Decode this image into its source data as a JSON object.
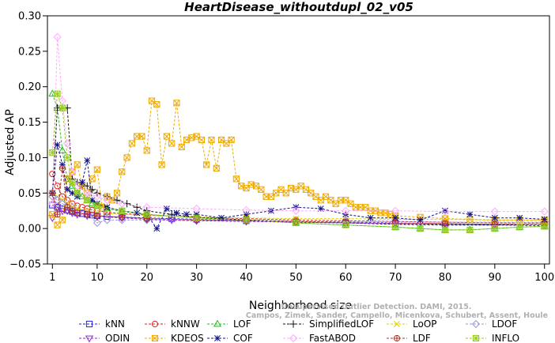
{
  "chart_data": {
    "type": "line",
    "title": "HeartDisease_withoutdupl_02_v05",
    "xlabel": "Neighborhood size",
    "ylabel": "Adjusted AP",
    "xlim": [
      0,
      101
    ],
    "ylim": [
      -0.05,
      0.3
    ],
    "xticks": [
      1,
      10,
      20,
      30,
      40,
      50,
      60,
      70,
      80,
      90,
      100
    ],
    "yticks": [
      -0.05,
      0.0,
      0.05,
      0.1,
      0.15,
      0.2,
      0.25,
      0.3
    ],
    "ytick_labels": [
      "−0.05",
      "0.00",
      "0.05",
      "0.10",
      "0.15",
      "0.20",
      "0.25",
      "0.30"
    ],
    "watermark_lines": [
      "Unsupervised Outlier Detection. DAMI, 2015.",
      "Campos, Zimek, Sander, Campello, Micenkova, Schubert, Assent, Houle"
    ],
    "legend_placement": "bottom",
    "series": [
      {
        "name": "kNN",
        "color": "#2222dd",
        "marker": "square",
        "x": [
          1,
          2,
          3,
          4,
          5,
          6,
          7,
          8,
          9,
          10,
          12,
          15,
          20,
          25,
          30,
          40,
          50,
          60,
          70,
          80,
          90,
          100
        ],
        "y": [
          0.033,
          0.03,
          0.028,
          0.026,
          0.024,
          0.022,
          0.021,
          0.02,
          0.019,
          0.018,
          0.017,
          0.016,
          0.015,
          0.014,
          0.013,
          0.011,
          0.009,
          0.008,
          0.007,
          0.006,
          0.005,
          0.004
        ]
      },
      {
        "name": "kNNW",
        "color": "#dd2222",
        "marker": "circle",
        "x": [
          1,
          2,
          3,
          4,
          5,
          6,
          7,
          8,
          9,
          10,
          12,
          15,
          20,
          30,
          40,
          50,
          60,
          70,
          80,
          90,
          100
        ],
        "y": [
          0.077,
          0.06,
          0.045,
          0.04,
          0.035,
          0.032,
          0.03,
          0.028,
          0.026,
          0.025,
          0.023,
          0.021,
          0.019,
          0.016,
          0.014,
          0.012,
          0.011,
          0.01,
          0.009,
          0.008,
          0.008
        ]
      },
      {
        "name": "LOF",
        "color": "#22bb22",
        "marker": "triangle-up",
        "x": [
          1,
          2,
          3,
          4,
          5,
          6,
          7,
          8,
          9,
          10,
          12,
          15,
          20,
          30,
          40,
          50,
          60,
          70,
          75,
          80,
          85,
          90,
          95,
          100
        ],
        "y": [
          0.19,
          0.17,
          0.11,
          0.07,
          0.06,
          0.05,
          0.045,
          0.04,
          0.035,
          0.032,
          0.028,
          0.024,
          0.02,
          0.015,
          0.012,
          0.008,
          0.005,
          0.002,
          0.0,
          -0.002,
          -0.002,
          0.0,
          0.002,
          0.003
        ]
      },
      {
        "name": "SimplifiedLOF",
        "color": "#111111",
        "marker": "plus",
        "x": [
          1,
          2,
          3,
          4,
          5,
          6,
          7,
          8,
          9,
          10,
          12,
          14,
          16,
          18,
          20,
          25,
          30,
          40,
          50,
          60,
          70,
          80,
          90,
          100
        ],
        "y": [
          0.05,
          0.17,
          0.17,
          0.17,
          0.07,
          0.065,
          0.06,
          0.06,
          0.055,
          0.05,
          0.045,
          0.04,
          0.035,
          0.03,
          0.025,
          0.02,
          0.016,
          0.012,
          0.01,
          0.008,
          0.006,
          0.005,
          0.005,
          0.006
        ]
      },
      {
        "name": "LoOP",
        "color": "#e0d000",
        "marker": "x",
        "x": [
          1,
          2,
          3,
          4,
          5,
          6,
          8,
          10,
          15,
          20,
          30,
          40,
          50,
          60,
          70,
          80,
          90,
          100
        ],
        "y": [
          0.04,
          0.045,
          0.04,
          0.035,
          0.03,
          0.028,
          0.025,
          0.022,
          0.02,
          0.018,
          0.016,
          0.015,
          0.014,
          0.014,
          0.013,
          0.013,
          0.012,
          0.012
        ]
      },
      {
        "name": "LDOF",
        "color": "#9999dd",
        "marker": "diamond",
        "x": [
          1,
          2,
          3,
          5,
          8,
          10,
          12,
          15,
          20,
          30,
          40,
          50,
          60,
          70,
          80,
          90,
          100
        ],
        "y": [
          0.045,
          0.04,
          0.035,
          0.03,
          0.02,
          0.008,
          0.012,
          0.012,
          0.012,
          0.011,
          0.011,
          0.01,
          0.01,
          0.01,
          0.009,
          0.009,
          0.009
        ]
      },
      {
        "name": "ODIN",
        "color": "#9922dd",
        "marker": "triangle-down",
        "x": [
          1,
          2,
          3,
          4,
          5,
          6,
          8,
          10,
          15,
          20,
          25,
          30,
          40,
          50,
          60,
          70,
          80,
          90,
          100
        ],
        "y": [
          0.015,
          0.03,
          0.025,
          0.025,
          0.022,
          0.02,
          0.018,
          0.017,
          0.015,
          0.013,
          0.012,
          0.011,
          0.01,
          0.009,
          0.008,
          0.007,
          0.007,
          0.006,
          0.006
        ]
      },
      {
        "name": "KDEOS",
        "color": "#eeaa00",
        "marker": "box-x",
        "x": [
          1,
          2,
          3,
          4,
          5,
          6,
          7,
          8,
          9,
          10,
          11,
          12,
          13,
          14,
          15,
          16,
          17,
          18,
          19,
          20,
          21,
          22,
          23,
          24,
          25,
          26,
          27,
          28,
          29,
          30,
          31,
          32,
          33,
          34,
          35,
          36,
          37,
          38,
          39,
          40,
          41,
          42,
          43,
          44,
          45,
          46,
          47,
          48,
          49,
          50,
          51,
          52,
          53,
          54,
          55,
          56,
          57,
          58,
          59,
          60,
          61,
          62,
          63,
          64,
          65,
          66,
          67,
          68,
          69,
          70,
          75,
          80,
          85,
          90,
          95,
          100
        ],
        "y": [
          0.02,
          0.005,
          0.012,
          0.07,
          0.08,
          0.09,
          0.06,
          0.05,
          0.07,
          0.083,
          0.03,
          0.045,
          0.04,
          0.05,
          0.08,
          0.1,
          0.12,
          0.13,
          0.13,
          0.11,
          0.18,
          0.175,
          0.09,
          0.13,
          0.12,
          0.177,
          0.115,
          0.125,
          0.128,
          0.13,
          0.125,
          0.09,
          0.125,
          0.085,
          0.125,
          0.12,
          0.125,
          0.07,
          0.06,
          0.057,
          0.062,
          0.06,
          0.055,
          0.045,
          0.045,
          0.05,
          0.055,
          0.05,
          0.057,
          0.055,
          0.06,
          0.055,
          0.05,
          0.045,
          0.04,
          0.045,
          0.04,
          0.035,
          0.04,
          0.04,
          0.035,
          0.03,
          0.03,
          0.03,
          0.025,
          0.025,
          0.022,
          0.022,
          0.02,
          0.018,
          0.016,
          0.014,
          0.013,
          0.012,
          0.012,
          0.012
        ]
      },
      {
        "name": "COF",
        "color": "#111188",
        "marker": "asterisk",
        "x": [
          1,
          2,
          3,
          4,
          5,
          6,
          7,
          8,
          9,
          10,
          12,
          15,
          18,
          20,
          22,
          24,
          26,
          28,
          30,
          35,
          40,
          45,
          50,
          55,
          60,
          65,
          70,
          75,
          80,
          85,
          90,
          95,
          100
        ],
        "y": [
          0.05,
          0.118,
          0.09,
          0.055,
          0.05,
          0.045,
          0.065,
          0.096,
          0.04,
          0.035,
          0.03,
          0.025,
          0.022,
          0.02,
          0.0,
          0.028,
          0.022,
          0.02,
          0.02,
          0.015,
          0.02,
          0.025,
          0.03,
          0.028,
          0.02,
          0.015,
          0.015,
          0.012,
          0.025,
          0.02,
          0.015,
          0.015,
          0.013
        ]
      },
      {
        "name": "FastABOD",
        "color": "#ffaaff",
        "marker": "diamond",
        "x": [
          1,
          2,
          3,
          4,
          5,
          6,
          8,
          10,
          12,
          15,
          20,
          30,
          40,
          50,
          60,
          70,
          80,
          90,
          100
        ],
        "y": [
          0.035,
          0.27,
          0.18,
          0.12,
          0.08,
          0.06,
          0.05,
          0.045,
          0.04,
          0.035,
          0.03,
          0.028,
          0.026,
          0.025,
          0.025,
          0.025,
          0.024,
          0.024,
          0.024
        ]
      },
      {
        "name": "LDF",
        "color": "#aa3322",
        "marker": "circle-plus",
        "x": [
          1,
          2,
          3,
          4,
          5,
          6,
          8,
          10,
          15,
          20,
          30,
          40,
          50,
          60,
          70,
          80,
          90,
          100
        ],
        "y": [
          0.05,
          0.02,
          0.085,
          0.03,
          0.025,
          0.022,
          0.02,
          0.018,
          0.016,
          0.014,
          0.012,
          0.011,
          0.01,
          0.009,
          0.008,
          0.007,
          0.006,
          0.006
        ]
      },
      {
        "name": "INFLO",
        "color": "#99cc22",
        "marker": "box-asterisk",
        "x": [
          1,
          2,
          3,
          4,
          5,
          6,
          8,
          10,
          15,
          20,
          30,
          40,
          50,
          60,
          70,
          75,
          80,
          85,
          90,
          95,
          100
        ],
        "y": [
          0.107,
          0.19,
          0.17,
          0.1,
          0.065,
          0.05,
          0.04,
          0.032,
          0.025,
          0.02,
          0.015,
          0.012,
          0.008,
          0.005,
          0.002,
          0.0,
          -0.002,
          -0.002,
          0.0,
          0.002,
          0.003
        ]
      }
    ]
  }
}
